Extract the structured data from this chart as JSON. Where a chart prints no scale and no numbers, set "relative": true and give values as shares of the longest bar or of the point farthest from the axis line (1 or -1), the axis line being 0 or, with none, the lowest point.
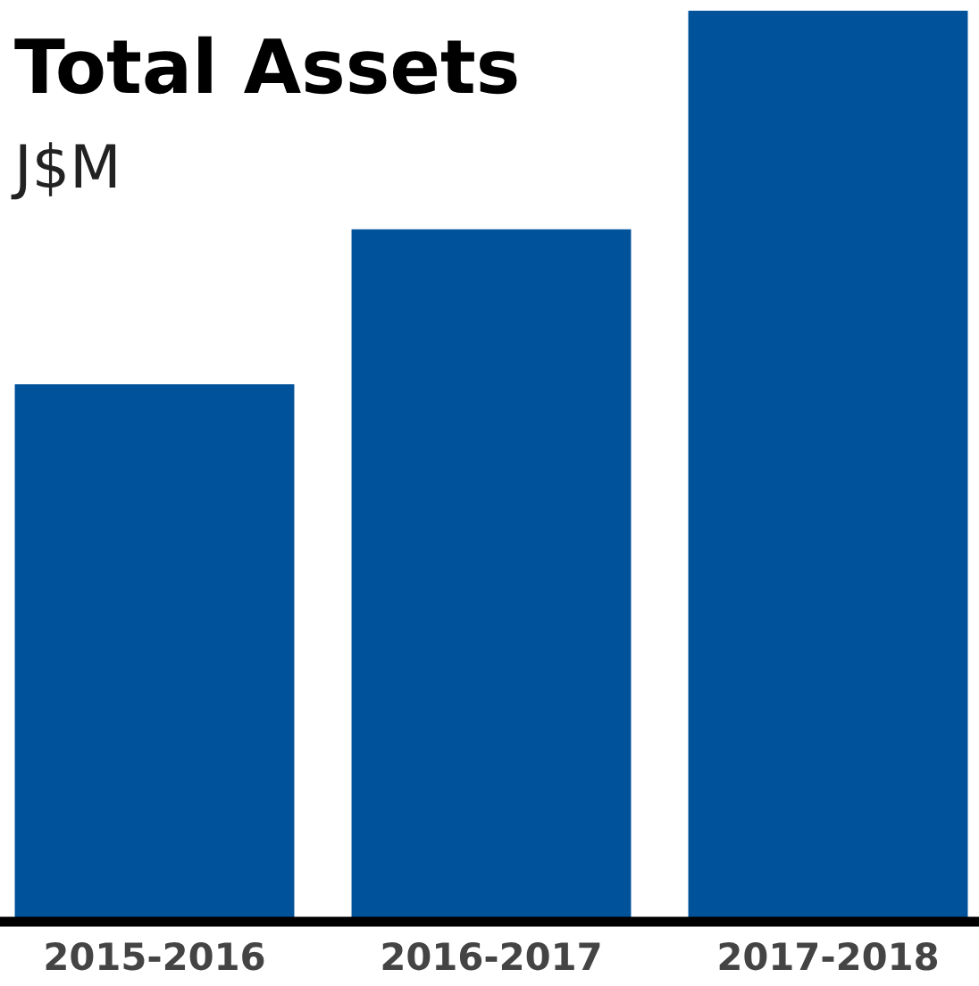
{
  "chart_data": {
    "type": "bar",
    "title": "Total Assets",
    "subtitle": "J$M",
    "relative": true,
    "categories": [
      "2015-2016",
      "2016-2017",
      "2017-2018"
    ],
    "values": [
      0.59,
      0.76,
      1
    ],
    "color": "#00529b"
  }
}
